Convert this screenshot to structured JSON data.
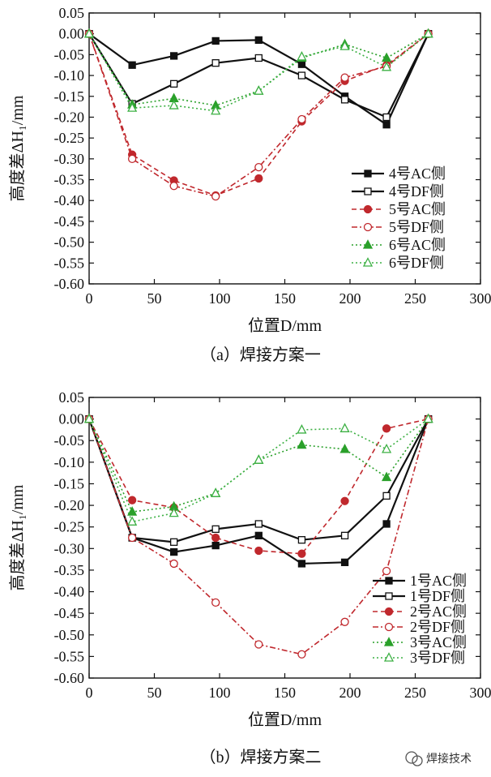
{
  "watermark": "焊接技术",
  "chart_data": [
    {
      "type": "line",
      "caption": "（a）焊接方案一",
      "xlabel": "位置D/mm",
      "ylabel": "高度差ΔH₁/mm",
      "xlim": [
        0,
        300
      ],
      "ylim": [
        -0.6,
        0.05
      ],
      "xticks": [
        "0",
        "50",
        "100",
        "150",
        "200",
        "250",
        "300"
      ],
      "yticks": [
        "0.05",
        "0.00",
        "-0.05",
        "-0.10",
        "-0.15",
        "-0.20",
        "-0.25",
        "-0.30",
        "-0.35",
        "-0.40",
        "-0.45",
        "-0.50",
        "-0.55",
        "-0.60"
      ],
      "legend_position": "right",
      "x": [
        0,
        33,
        65,
        97,
        130,
        163,
        196,
        228,
        260
      ],
      "series": [
        {
          "name": "4号AC侧",
          "color": "#111111",
          "marker": "square-filled",
          "dash": "solid",
          "values": [
            0.0,
            -0.075,
            -0.053,
            -0.017,
            -0.015,
            -0.073,
            -0.15,
            -0.218,
            0.0
          ]
        },
        {
          "name": "4号DF侧",
          "color": "#111111",
          "marker": "square-open",
          "dash": "solid",
          "values": [
            0.0,
            -0.168,
            -0.12,
            -0.07,
            -0.058,
            -0.1,
            -0.158,
            -0.2,
            0.0
          ]
        },
        {
          "name": "5号AC侧",
          "color": "#c0282d",
          "marker": "circle-filled",
          "dash": "dash",
          "values": [
            0.0,
            -0.29,
            -0.352,
            -0.388,
            -0.347,
            -0.21,
            -0.113,
            -0.075,
            0.0
          ]
        },
        {
          "name": "5号DF侧",
          "color": "#c0282d",
          "marker": "circle-open",
          "dash": "dashdot",
          "values": [
            0.0,
            -0.3,
            -0.365,
            -0.39,
            -0.32,
            -0.205,
            -0.105,
            -0.078,
            0.0
          ]
        },
        {
          "name": "6号AC侧",
          "color": "#2aa02a",
          "marker": "triangle-filled",
          "dash": "dot",
          "values": [
            0.0,
            -0.17,
            -0.155,
            -0.172,
            -0.137,
            -0.058,
            -0.025,
            -0.058,
            0.0
          ]
        },
        {
          "name": "6号DF侧",
          "color": "#3cb043",
          "marker": "triangle-open",
          "dash": "dot",
          "values": [
            0.0,
            -0.178,
            -0.172,
            -0.185,
            -0.137,
            -0.055,
            -0.03,
            -0.08,
            0.0
          ]
        }
      ]
    },
    {
      "type": "line",
      "caption": "（b）焊接方案二",
      "xlabel": "位置D/mm",
      "ylabel": "高度差ΔH₁/mm",
      "xlim": [
        0,
        300
      ],
      "ylim": [
        -0.6,
        0.05
      ],
      "xticks": [
        "0",
        "50",
        "100",
        "150",
        "200",
        "250",
        "300"
      ],
      "yticks": [
        "0.05",
        "0.00",
        "-0.05",
        "-0.10",
        "-0.15",
        "-0.20",
        "-0.25",
        "-0.30",
        "-0.35",
        "-0.40",
        "-0.45",
        "-0.50",
        "-0.55",
        "-0.60"
      ],
      "legend_position": "bottom-right",
      "x": [
        0,
        33,
        65,
        97,
        130,
        163,
        196,
        228,
        260
      ],
      "series": [
        {
          "name": "1号AC侧",
          "color": "#111111",
          "marker": "square-filled",
          "dash": "solid",
          "values": [
            0.0,
            -0.275,
            -0.308,
            -0.293,
            -0.27,
            -0.335,
            -0.332,
            -0.243,
            0.0
          ]
        },
        {
          "name": "1号DF侧",
          "color": "#111111",
          "marker": "square-open",
          "dash": "solid",
          "values": [
            0.0,
            -0.275,
            -0.285,
            -0.255,
            -0.243,
            -0.28,
            -0.27,
            -0.178,
            0.0
          ]
        },
        {
          "name": "2号AC侧",
          "color": "#c0282d",
          "marker": "circle-filled",
          "dash": "dash",
          "values": [
            0.0,
            -0.188,
            -0.205,
            -0.275,
            -0.305,
            -0.312,
            -0.19,
            -0.022,
            0.0
          ]
        },
        {
          "name": "2号DF侧",
          "color": "#c0282d",
          "marker": "circle-open",
          "dash": "dashdot",
          "values": [
            0.0,
            -0.275,
            -0.335,
            -0.425,
            -0.522,
            -0.545,
            -0.47,
            -0.352,
            0.0
          ]
        },
        {
          "name": "3号AC侧",
          "color": "#2aa02a",
          "marker": "triangle-filled",
          "dash": "dot",
          "values": [
            0.0,
            -0.215,
            -0.203,
            -0.172,
            -0.095,
            -0.06,
            -0.07,
            -0.135,
            0.0
          ]
        },
        {
          "name": "3号DF侧",
          "color": "#3cb043",
          "marker": "triangle-open",
          "dash": "dot",
          "values": [
            0.0,
            -0.238,
            -0.218,
            -0.172,
            -0.095,
            -0.025,
            -0.022,
            -0.07,
            0.0
          ]
        }
      ]
    }
  ]
}
